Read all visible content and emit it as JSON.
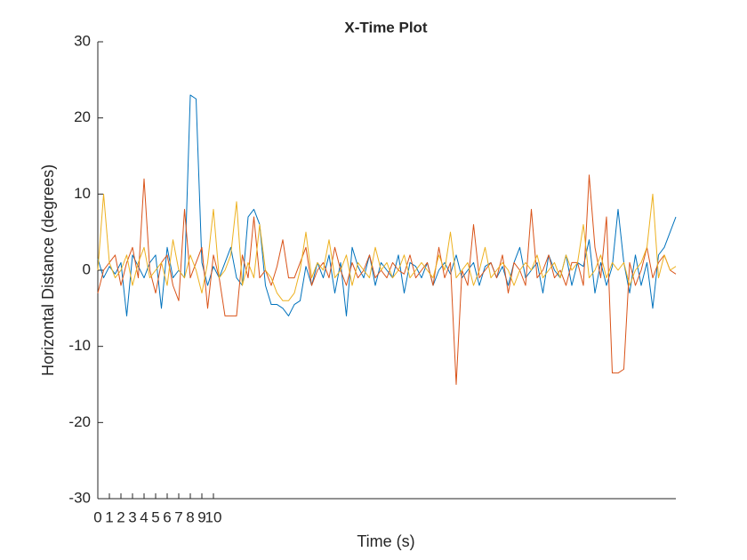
{
  "chart_data": {
    "type": "line",
    "title": "X-Time Plot",
    "xlabel": "Time (s)",
    "ylabel": "Horizontal Distance (degrees)",
    "x": [
      0,
      0.5,
      1,
      1.5,
      2,
      2.5,
      3,
      3.5,
      4,
      4.5,
      5,
      5.5,
      6,
      6.5,
      7,
      7.5,
      8,
      8.5,
      9,
      9.5,
      10,
      10.5,
      11,
      11.5,
      12,
      12.5,
      13,
      13.5,
      14,
      14.5,
      15,
      15.5,
      16,
      16.5,
      17,
      17.5,
      18,
      18.5,
      19,
      19.5,
      20,
      20.5,
      21,
      21.5,
      22,
      22.5,
      23,
      23.5,
      24,
      24.5,
      25,
      25.5,
      26,
      26.5,
      27,
      27.5,
      28,
      28.5,
      29,
      29.5,
      30,
      30.5,
      31,
      31.5,
      32,
      32.5,
      33,
      33.5,
      34,
      34.5,
      35,
      35.5,
      36,
      36.5,
      37,
      37.5,
      38,
      38.5,
      39,
      39.5,
      40,
      40.5,
      41,
      41.5,
      42,
      42.5,
      43,
      43.5,
      44,
      44.5,
      45,
      45.5,
      46,
      46.5,
      47,
      47.5,
      48,
      48.5,
      49,
      49.5,
      50
    ],
    "series": [
      {
        "color": "#0072bd",
        "values": [
          1.5,
          -1,
          0.5,
          -0.5,
          1,
          -6,
          2,
          0.5,
          -1,
          1,
          2,
          -5,
          3,
          -1,
          0,
          -1,
          23,
          22.5,
          1,
          -2,
          0.5,
          -1,
          1,
          3,
          -1,
          -2,
          7,
          8,
          6,
          -2,
          -4.5,
          -4.5,
          -5,
          -6,
          -4.5,
          -4,
          0.5,
          -2,
          1,
          -1,
          2,
          -3,
          1,
          -6,
          3,
          0.5,
          -1,
          2,
          -2,
          1,
          0,
          -1,
          2,
          -3,
          1,
          0.5,
          -1,
          1,
          -2,
          0,
          1,
          -0.5,
          2,
          -1,
          0,
          1,
          -2,
          0.5,
          1,
          -1,
          0.5,
          -2,
          1,
          3,
          -1,
          0,
          1,
          -3,
          2,
          0,
          -1,
          2,
          -2,
          1,
          0.5,
          4,
          -3,
          1,
          -2,
          0.5,
          8,
          1,
          -3,
          2,
          -2,
          1,
          -5,
          2,
          3,
          5,
          7
        ]
      },
      {
        "color": "#d95319",
        "values": [
          -3,
          0,
          1,
          2,
          -2,
          1,
          3,
          -1,
          12,
          0,
          -3,
          1,
          2,
          -2,
          -4,
          8,
          -1,
          1,
          3,
          -5,
          2,
          -1,
          -6,
          -6,
          -6,
          2,
          -1,
          7,
          -1,
          0,
          -2,
          0.5,
          4,
          -1,
          -1,
          1,
          3,
          -2,
          0,
          1,
          -1,
          3,
          0,
          -2,
          1,
          -1,
          0,
          2,
          -1,
          0,
          -1,
          1,
          0,
          -0.5,
          2,
          -1,
          0,
          1,
          -2,
          3,
          -1,
          1,
          -15,
          0,
          -2,
          6,
          -1,
          0,
          1,
          -1,
          2,
          -3,
          1,
          0,
          -2,
          8,
          -1,
          0,
          2,
          -1,
          0,
          -2,
          1,
          1,
          -2,
          12.5,
          3,
          -1,
          7,
          -13.5,
          -13.5,
          -13,
          1,
          -2,
          0,
          3,
          -1,
          1,
          2,
          0,
          -0.5
        ]
      },
      {
        "color": "#edb120",
        "values": [
          0,
          10,
          1,
          -1,
          0,
          2,
          -2,
          1,
          3,
          -1,
          0,
          1,
          -2,
          4,
          0,
          -1,
          2,
          0,
          -3,
          1,
          8,
          -1,
          0,
          2,
          9,
          -2,
          1,
          -1,
          6,
          0,
          -1,
          -3,
          -4,
          -4,
          -3,
          0,
          5,
          -1,
          1,
          0,
          4,
          -1,
          0,
          2,
          -2,
          1,
          0,
          -1,
          3,
          0,
          1,
          -1,
          0,
          2,
          -1,
          0,
          1,
          0,
          -1,
          2,
          0,
          5,
          -1,
          0,
          1,
          -2,
          0,
          3,
          -1,
          0,
          1,
          0,
          -2,
          0,
          1,
          0,
          2,
          -1,
          0,
          1,
          -1,
          2,
          0,
          1,
          6,
          -1,
          0,
          2,
          -1,
          1,
          0,
          1,
          -2,
          0,
          1,
          3,
          10,
          -1,
          2,
          0,
          0.5
        ]
      }
    ],
    "xlim": [
      0,
      50
    ],
    "ylim": [
      -30,
      30
    ],
    "xticks": [
      0,
      1,
      2,
      3,
      4,
      5,
      6,
      7,
      8,
      9,
      10
    ],
    "yticks": [
      -30,
      -20,
      -10,
      0,
      10,
      20,
      30
    ]
  }
}
